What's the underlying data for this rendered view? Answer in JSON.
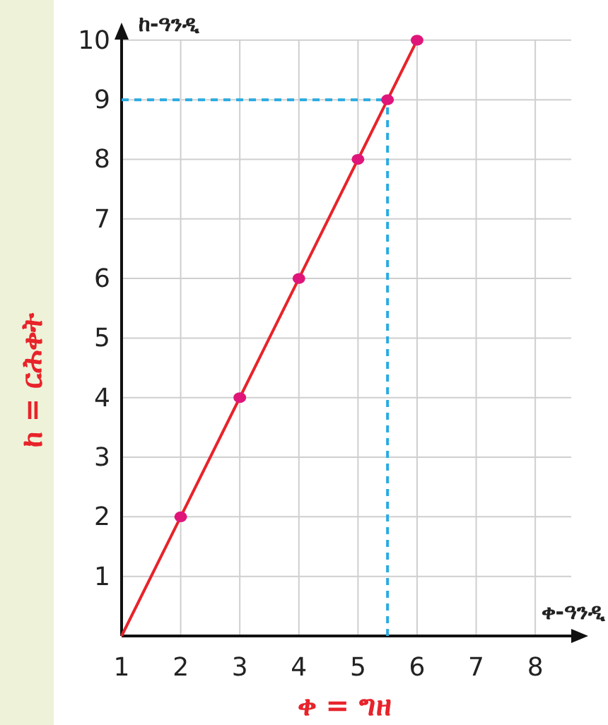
{
  "chart_data": {
    "type": "line",
    "xlabel": "ቀ = ግዘ",
    "ylabel": "ከ = ርሕቀት",
    "annotations": [
      "ከ-ዓንዲ",
      "ቀ-ዓንዲ"
    ],
    "xlim": [
      1,
      8.8
    ],
    "ylim": [
      0,
      10.2
    ],
    "xticks": [
      1,
      2,
      3,
      4,
      5,
      6,
      7,
      8
    ],
    "yticks": [
      1,
      2,
      3,
      4,
      5,
      6,
      7,
      8,
      9,
      10
    ],
    "grid": true,
    "series": [
      {
        "type": "line",
        "color": "#e8232a",
        "x": [
          1,
          2,
          3,
          4,
          5,
          5.5,
          6
        ],
        "values": [
          0,
          2,
          4,
          6,
          8,
          9,
          10
        ],
        "marker": "none",
        "line_style": "solid"
      },
      {
        "type": "scatter",
        "color": "#e0157a",
        "x": [
          2,
          3,
          4,
          5,
          5.5,
          6
        ],
        "values": [
          2,
          4,
          6,
          8,
          9,
          10
        ],
        "marker": "circle"
      }
    ],
    "ref_lines": [
      {
        "axis": "y",
        "value": 9,
        "color": "#29abe2",
        "line_style": "dashed"
      },
      {
        "axis": "x",
        "value": 5.5,
        "color": "#29abe2",
        "line_style": "dashed"
      }
    ]
  }
}
